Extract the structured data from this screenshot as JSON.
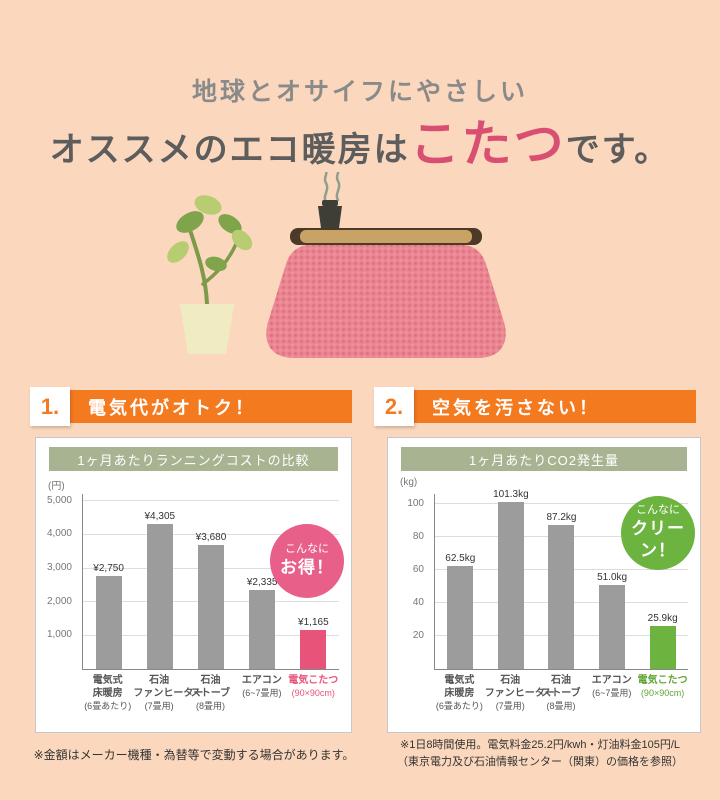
{
  "title": {
    "line1": "地球とオサイフにやさしい",
    "line2_prefix": "オススメのエコ暖房は",
    "line2_highlight": "こたつ",
    "line2_suffix": "です。"
  },
  "sections": [
    {
      "number": "1.",
      "label": "電気代がオトク！"
    },
    {
      "number": "2.",
      "label": "空気を汚さない！"
    }
  ],
  "notes": {
    "left": "※金額はメーカー機種・為替等で変動する場合があります。",
    "right1": "※1日8時間使用。電気料金25.2円/kwh・灯油料金105円/L",
    "right2": "（東京電力及び石油情報センター（関東）の価格を参照）"
  },
  "colors": {
    "background": "#fbd8bd",
    "accent_orange": "#f47a20",
    "chart_title_green": "#a8b491",
    "bar_gray": "#9c9c9c",
    "kotatsu_pink": "#e8537a",
    "eco_green": "#6db33f",
    "title_pink": "#d94f72"
  },
  "chart_data": [
    {
      "type": "bar",
      "title": "1ヶ月あたりランニングコストの比較",
      "unit": "(円)",
      "xlabel": "",
      "ylabel": "円",
      "ylim": [
        0,
        5200
      ],
      "grid": true,
      "legend": false,
      "yticks": [
        1000,
        2000,
        3000,
        4000,
        5000
      ],
      "ytick_labels": [
        "1,000",
        "2,000",
        "3,000",
        "4,000",
        "5,000"
      ],
      "categories": [
        [
          "電気式",
          "床暖房",
          "(6畳あたり)"
        ],
        [
          "石油",
          "ファンヒーター",
          "(7畳用)"
        ],
        [
          "石油",
          "ストーブ",
          "(8畳用)"
        ],
        [
          "エアコン",
          "(6~7畳用)"
        ],
        [
          "電気こたつ",
          "(90×90cm)"
        ]
      ],
      "values": [
        2750,
        4305,
        3680,
        2335,
        1165
      ],
      "value_labels": [
        "¥2,750",
        "¥4,305",
        "¥3,680",
        "¥2,335",
        "¥1,165"
      ],
      "bar_colors": [
        "#9c9c9c",
        "#9c9c9c",
        "#9c9c9c",
        "#9c9c9c",
        "#e8537a"
      ],
      "category_colors": [
        "#555555",
        "#555555",
        "#555555",
        "#555555",
        "#e8537a"
      ],
      "badge": {
        "line1": "こんなに",
        "line2": "お得！",
        "color": "#e8608a"
      }
    },
    {
      "type": "bar",
      "title": "1ヶ月あたりCO2発生量",
      "unit": "(kg)",
      "xlabel": "",
      "ylabel": "kg",
      "ylim": [
        0,
        106
      ],
      "grid": true,
      "legend": false,
      "yticks": [
        20,
        40,
        60,
        80,
        100
      ],
      "ytick_labels": [
        "20",
        "40",
        "60",
        "80",
        "100"
      ],
      "categories": [
        [
          "電気式",
          "床暖房",
          "(6畳あたり)"
        ],
        [
          "石油",
          "ファンヒーター",
          "(7畳用)"
        ],
        [
          "石油",
          "ストーブ",
          "(8畳用)"
        ],
        [
          "エアコン",
          "(6~7畳用)"
        ],
        [
          "電気こたつ",
          "(90×90cm)"
        ]
      ],
      "values": [
        62.5,
        101.3,
        87.2,
        51.0,
        25.9
      ],
      "value_labels": [
        "62.5kg",
        "101.3kg",
        "87.2kg",
        "51.0kg",
        "25.9kg"
      ],
      "bar_colors": [
        "#9c9c9c",
        "#9c9c9c",
        "#9c9c9c",
        "#9c9c9c",
        "#6db33f"
      ],
      "category_colors": [
        "#555555",
        "#555555",
        "#555555",
        "#555555",
        "#5ea636"
      ],
      "badge": {
        "line1": "こんなに",
        "line2": "クリーン！",
        "color": "#6db33f"
      }
    }
  ]
}
